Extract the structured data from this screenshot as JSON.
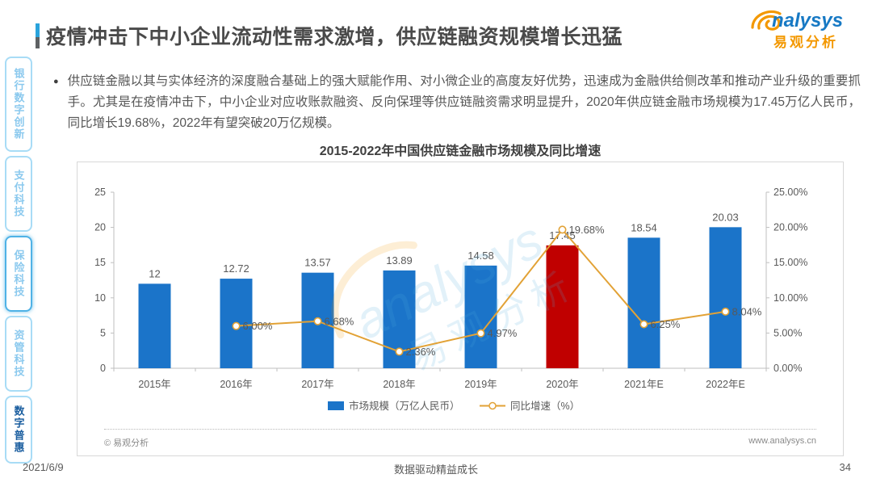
{
  "page": {
    "title": "疫情冲击下中小企业流动性需求激增，供应链融资规模增长迅猛"
  },
  "logo": {
    "wordmark": "nalysys",
    "cn": "易观分析"
  },
  "sidebar": {
    "items": [
      {
        "label": "银行数字创新",
        "active": false,
        "highlighted": false
      },
      {
        "label": "支付科技",
        "active": false,
        "highlighted": false
      },
      {
        "label": "保险科技",
        "active": false,
        "highlighted": true
      },
      {
        "label": "资管科技",
        "active": false,
        "highlighted": false
      },
      {
        "label": "数字普惠",
        "active": true,
        "highlighted": false
      }
    ]
  },
  "bullet": {
    "text": "供应链金融以其与实体经济的深度融合基础上的强大赋能作用、对小微企业的高度友好优势，迅速成为金融供给侧改革和推动产业升级的重要抓手。尤其是在疫情冲击下，中小企业对应收账款融资、反向保理等供应链融资需求明显提升，2020年供应链金融市场规模为17.45万亿人民币，同比增长19.68%，2022年有望突破20万亿规模。"
  },
  "chart_data": {
    "type": "combo-bar-line",
    "title": "2015-2022年中国供应链金融市场规模及同比增速",
    "categories": [
      "2015年",
      "2016年",
      "2017年",
      "2018年",
      "2019年",
      "2020年",
      "2021年E",
      "2022年E"
    ],
    "series": [
      {
        "name": "市场规模（万亿人民币）",
        "type": "bar",
        "axis": "left",
        "values": [
          12,
          12.72,
          13.57,
          13.89,
          14.58,
          17.45,
          18.54,
          20.03
        ],
        "labels": [
          "12",
          "12.72",
          "13.57",
          "13.89",
          "14.58",
          "17.45",
          "18.54",
          "20.03"
        ]
      },
      {
        "name": "同比增速（%）",
        "type": "line",
        "axis": "right",
        "values": [
          null,
          6.0,
          6.68,
          2.36,
          4.97,
          19.68,
          6.25,
          8.04
        ],
        "labels": [
          null,
          "6.00%",
          "6.68%",
          "2.36%",
          "4.97%",
          "19.68%",
          "6.25%",
          "8.04%"
        ]
      }
    ],
    "left_axis": {
      "ticks": [
        "0",
        "5",
        "10",
        "15",
        "20",
        "25"
      ],
      "min": 0,
      "max": 25
    },
    "right_axis": {
      "ticks": [
        "0.00%",
        "5.00%",
        "10.00%",
        "15.00%",
        "20.00%",
        "25.00%"
      ],
      "min": 0,
      "max": 25
    },
    "highlight_index": 5,
    "legend_position": "bottom",
    "grid": false,
    "colors": {
      "bar": "#1B74C9",
      "bar_highlight": "#C00000",
      "line": "#E2A236",
      "axis": "#BFBFBF",
      "label": "#595959"
    }
  },
  "chart_footer": {
    "copyright": "© 易观分析",
    "website": "www.analysys.cn"
  },
  "watermark": {
    "text_en": "analysys",
    "text_cn": "易观分析"
  },
  "footer": {
    "date": "2021/6/9",
    "slogan": "数据驱动精益成长",
    "page_number": "34"
  }
}
